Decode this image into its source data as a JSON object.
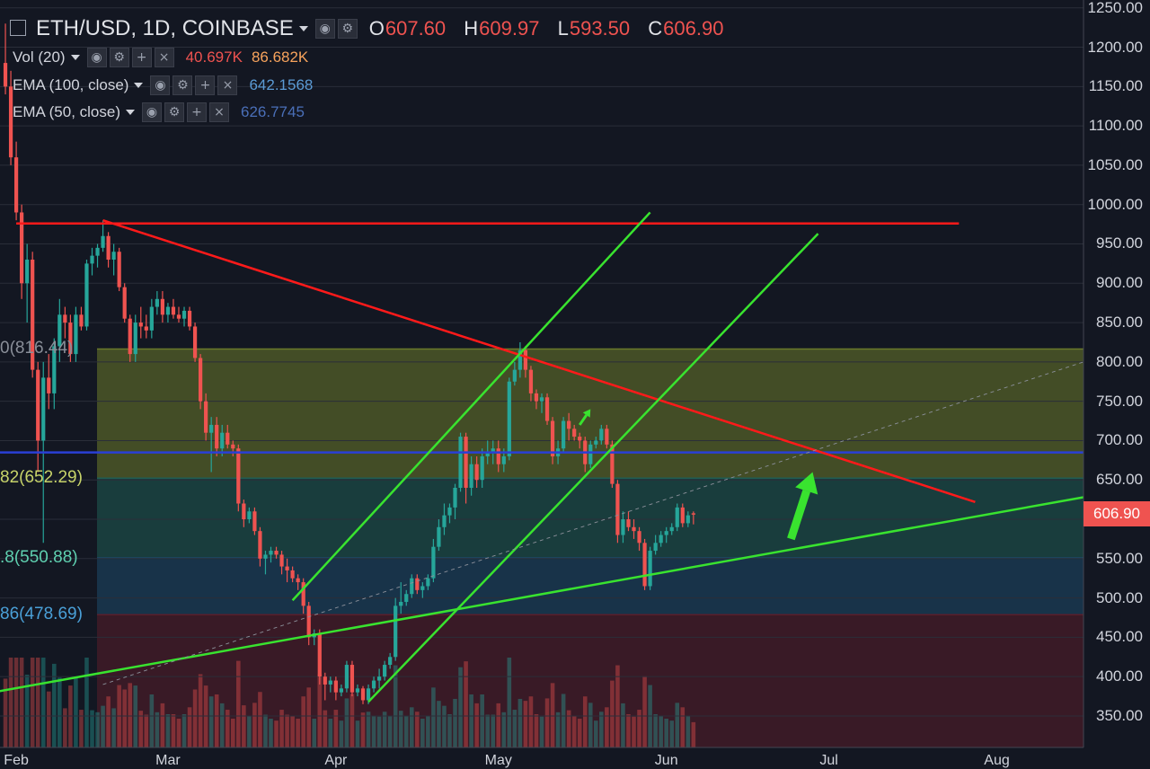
{
  "header": {
    "symbol_title": "ETH/USD, 1D, COINBASE",
    "ohlc": {
      "o": "607.60",
      "h": "609.97",
      "l": "593.50",
      "c": "606.90"
    },
    "indicators": [
      {
        "label": "Vol (20)",
        "value1": "40.697K",
        "value2": "86.682K",
        "value1_color": "#ef5350",
        "value2_color": "#f7a35c"
      },
      {
        "label": "EMA (100, close)",
        "value1": "642.1568",
        "value1_color": "#5b9bd5"
      },
      {
        "label": "EMA (50, close)",
        "value1": "626.7745",
        "value1_color": "#4a6fb8"
      }
    ]
  },
  "price_tag": "606.90",
  "fib_labels": [
    {
      "text": "0(816.44)",
      "price": 816.44,
      "color": "#8a8f99"
    },
    {
      "text": "82(652.29)",
      "price": 652.29,
      "color": "#c8d46a"
    },
    {
      "text": ".8(550.88)",
      "price": 550.88,
      "color": "#5fd0b0"
    },
    {
      "text": "86(478.69)",
      "price": 478.69,
      "color": "#4aa0d8"
    }
  ],
  "colors": {
    "background": "#131722",
    "up": "#26a69a",
    "down": "#ef5350",
    "trend_red": "#ff1a1a",
    "trend_green": "#39e32f",
    "support_blue": "#2a3fd6"
  },
  "chart_data": {
    "type": "candlestick",
    "title": "ETH/USD, 1D, COINBASE",
    "y_axis": {
      "ticks": [
        "1250.00",
        "1200.00",
        "1150.00",
        "1100.00",
        "1050.00",
        "1000.00",
        "950.00",
        "900.00",
        "850.00",
        "800.00",
        "750.00",
        "700.00",
        "650.00",
        "600.00",
        "550.00",
        "500.00",
        "450.00",
        "400.00",
        "350.00"
      ],
      "range": [
        310,
        1260
      ]
    },
    "x_axis": {
      "ticks": [
        {
          "label": "Feb",
          "date": "2018-02-01"
        },
        {
          "label": "Mar",
          "date": "2018-03-01"
        },
        {
          "label": "Apr",
          "date": "2018-04-01"
        },
        {
          "label": "May",
          "date": "2018-05-01"
        },
        {
          "label": "Jun",
          "date": "2018-06-01"
        },
        {
          "label": "Jul",
          "date": "2018-07-01"
        },
        {
          "label": "Aug",
          "date": "2018-08-01"
        }
      ],
      "range": [
        "2018-01-29",
        "2018-08-17"
      ]
    },
    "candles": [
      [
        "2018-01-30",
        1180,
        1230,
        1140,
        1150
      ],
      [
        "2018-01-31",
        1150,
        1170,
        1050,
        1060
      ],
      [
        "2018-02-01",
        1060,
        1080,
        980,
        990
      ],
      [
        "2018-02-02",
        990,
        1000,
        880,
        900
      ],
      [
        "2018-02-03",
        900,
        950,
        850,
        930
      ],
      [
        "2018-02-04",
        930,
        940,
        780,
        790
      ],
      [
        "2018-02-05",
        790,
        800,
        660,
        700
      ],
      [
        "2018-02-06",
        700,
        800,
        570,
        780
      ],
      [
        "2018-02-07",
        780,
        810,
        740,
        760
      ],
      [
        "2018-02-08",
        760,
        830,
        740,
        820
      ],
      [
        "2018-02-09",
        820,
        880,
        800,
        860
      ],
      [
        "2018-02-10",
        860,
        870,
        830,
        850
      ],
      [
        "2018-02-11",
        850,
        860,
        800,
        810
      ],
      [
        "2018-02-12",
        810,
        870,
        800,
        860
      ],
      [
        "2018-02-13",
        860,
        870,
        840,
        845
      ],
      [
        "2018-02-14",
        845,
        930,
        840,
        925
      ],
      [
        "2018-02-15",
        925,
        945,
        910,
        935
      ],
      [
        "2018-02-16",
        935,
        950,
        920,
        945
      ],
      [
        "2018-02-17",
        945,
        980,
        940,
        960
      ],
      [
        "2018-02-18",
        960,
        965,
        920,
        930
      ],
      [
        "2018-02-19",
        930,
        950,
        910,
        940
      ],
      [
        "2018-02-20",
        940,
        945,
        890,
        895
      ],
      [
        "2018-02-21",
        895,
        900,
        850,
        855
      ],
      [
        "2018-02-22",
        855,
        860,
        800,
        810
      ],
      [
        "2018-02-23",
        810,
        860,
        800,
        850
      ],
      [
        "2018-02-24",
        850,
        870,
        830,
        845
      ],
      [
        "2018-02-25",
        845,
        860,
        830,
        840
      ],
      [
        "2018-02-26",
        840,
        880,
        830,
        870
      ],
      [
        "2018-02-27",
        870,
        890,
        860,
        880
      ],
      [
        "2018-02-28",
        880,
        890,
        850,
        860
      ],
      [
        "2018-03-01",
        860,
        875,
        850,
        870
      ],
      [
        "2018-03-02",
        870,
        880,
        855,
        860
      ],
      [
        "2018-03-03",
        860,
        870,
        850,
        855
      ],
      [
        "2018-03-04",
        855,
        870,
        845,
        865
      ],
      [
        "2018-03-05",
        865,
        870,
        840,
        845
      ],
      [
        "2018-03-06",
        845,
        850,
        800,
        805
      ],
      [
        "2018-03-07",
        805,
        810,
        740,
        750
      ],
      [
        "2018-03-08",
        750,
        760,
        700,
        710
      ],
      [
        "2018-03-09",
        710,
        730,
        660,
        720
      ],
      [
        "2018-03-10",
        720,
        730,
        680,
        690
      ],
      [
        "2018-03-11",
        690,
        720,
        680,
        710
      ],
      [
        "2018-03-12",
        710,
        720,
        690,
        695
      ],
      [
        "2018-03-13",
        695,
        700,
        680,
        690
      ],
      [
        "2018-03-14",
        690,
        695,
        610,
        620
      ],
      [
        "2018-03-15",
        620,
        625,
        590,
        600
      ],
      [
        "2018-03-16",
        600,
        615,
        595,
        610
      ],
      [
        "2018-03-17",
        610,
        615,
        580,
        585
      ],
      [
        "2018-03-18",
        585,
        590,
        540,
        550
      ],
      [
        "2018-03-19",
        550,
        560,
        530,
        555
      ],
      [
        "2018-03-20",
        555,
        565,
        545,
        560
      ],
      [
        "2018-03-21",
        560,
        565,
        550,
        555
      ],
      [
        "2018-03-22",
        555,
        560,
        530,
        540
      ],
      [
        "2018-03-23",
        540,
        550,
        520,
        535
      ],
      [
        "2018-03-24",
        535,
        540,
        520,
        525
      ],
      [
        "2018-03-25",
        525,
        530,
        510,
        520
      ],
      [
        "2018-03-26",
        520,
        525,
        480,
        490
      ],
      [
        "2018-03-27",
        490,
        495,
        440,
        450
      ],
      [
        "2018-03-28",
        450,
        460,
        440,
        455
      ],
      [
        "2018-03-29",
        455,
        460,
        390,
        400
      ],
      [
        "2018-03-30",
        400,
        405,
        370,
        390
      ],
      [
        "2018-03-31",
        390,
        400,
        380,
        395
      ],
      [
        "2018-04-01",
        395,
        400,
        370,
        380
      ],
      [
        "2018-04-02",
        380,
        390,
        375,
        385
      ],
      [
        "2018-04-03",
        385,
        420,
        380,
        415
      ],
      [
        "2018-04-04",
        415,
        420,
        375,
        380
      ],
      [
        "2018-04-05",
        380,
        390,
        375,
        385
      ],
      [
        "2018-04-06",
        385,
        388,
        365,
        370
      ],
      [
        "2018-04-07",
        370,
        390,
        365,
        385
      ],
      [
        "2018-04-08",
        385,
        400,
        380,
        395
      ],
      [
        "2018-04-09",
        395,
        410,
        385,
        400
      ],
      [
        "2018-04-10",
        400,
        420,
        395,
        415
      ],
      [
        "2018-04-11",
        415,
        430,
        410,
        425
      ],
      [
        "2018-04-12",
        425,
        500,
        420,
        490
      ],
      [
        "2018-04-13",
        490,
        520,
        480,
        495
      ],
      [
        "2018-04-14",
        495,
        510,
        490,
        505
      ],
      [
        "2018-04-15",
        505,
        530,
        500,
        525
      ],
      [
        "2018-04-16",
        525,
        530,
        505,
        510
      ],
      [
        "2018-04-17",
        510,
        520,
        500,
        515
      ],
      [
        "2018-04-18",
        515,
        530,
        510,
        525
      ],
      [
        "2018-04-19",
        525,
        575,
        520,
        565
      ],
      [
        "2018-04-20",
        565,
        600,
        560,
        590
      ],
      [
        "2018-04-21",
        590,
        620,
        580,
        605
      ],
      [
        "2018-04-22",
        605,
        620,
        595,
        615
      ],
      [
        "2018-04-23",
        615,
        645,
        600,
        640
      ],
      [
        "2018-04-24",
        640,
        710,
        635,
        705
      ],
      [
        "2018-04-25",
        705,
        710,
        620,
        640
      ],
      [
        "2018-04-26",
        640,
        680,
        630,
        670
      ],
      [
        "2018-04-27",
        670,
        680,
        640,
        650
      ],
      [
        "2018-04-28",
        650,
        690,
        640,
        680
      ],
      [
        "2018-04-29",
        680,
        700,
        670,
        685
      ],
      [
        "2018-04-30",
        685,
        700,
        670,
        690
      ],
      [
        "2018-05-01",
        690,
        700,
        660,
        670
      ],
      [
        "2018-05-02",
        670,
        690,
        660,
        680
      ],
      [
        "2018-05-03",
        680,
        780,
        675,
        775
      ],
      [
        "2018-05-04",
        775,
        800,
        770,
        790
      ],
      [
        "2018-05-05",
        790,
        825,
        780,
        815
      ],
      [
        "2018-05-06",
        815,
        820,
        780,
        790
      ],
      [
        "2018-05-07",
        790,
        795,
        750,
        760
      ],
      [
        "2018-05-08",
        760,
        765,
        740,
        750
      ],
      [
        "2018-05-09",
        750,
        760,
        735,
        755
      ],
      [
        "2018-05-10",
        755,
        760,
        720,
        725
      ],
      [
        "2018-05-11",
        725,
        730,
        670,
        680
      ],
      [
        "2018-05-12",
        680,
        700,
        670,
        690
      ],
      [
        "2018-05-13",
        690,
        730,
        685,
        725
      ],
      [
        "2018-05-14",
        725,
        735,
        700,
        715
      ],
      [
        "2018-05-15",
        715,
        720,
        700,
        705
      ],
      [
        "2018-05-16",
        705,
        710,
        690,
        700
      ],
      [
        "2018-05-17",
        700,
        705,
        660,
        670
      ],
      [
        "2018-05-18",
        670,
        700,
        665,
        695
      ],
      [
        "2018-05-19",
        695,
        705,
        690,
        700
      ],
      [
        "2018-05-20",
        700,
        720,
        695,
        715
      ],
      [
        "2018-05-21",
        715,
        720,
        690,
        695
      ],
      [
        "2018-05-22",
        695,
        700,
        640,
        645
      ],
      [
        "2018-05-23",
        645,
        650,
        570,
        580
      ],
      [
        "2018-05-24",
        580,
        610,
        570,
        600
      ],
      [
        "2018-05-25",
        600,
        610,
        585,
        590
      ],
      [
        "2018-05-26",
        590,
        600,
        575,
        585
      ],
      [
        "2018-05-27",
        585,
        590,
        560,
        570
      ],
      [
        "2018-05-28",
        570,
        575,
        510,
        515
      ],
      [
        "2018-05-29",
        515,
        565,
        510,
        560
      ],
      [
        "2018-05-30",
        560,
        580,
        555,
        570
      ],
      [
        "2018-05-31",
        570,
        585,
        565,
        580
      ],
      [
        "2018-06-01",
        580,
        590,
        570,
        585
      ],
      [
        "2018-06-02",
        585,
        595,
        580,
        590
      ],
      [
        "2018-06-03",
        590,
        620,
        585,
        615
      ],
      [
        "2018-06-04",
        615,
        620,
        590,
        595
      ],
      [
        "2018-06-05",
        595,
        610,
        590,
        605
      ],
      [
        "2018-06-06",
        607.6,
        609.97,
        593.5,
        606.9
      ]
    ],
    "horizontal_levels": [
      {
        "name": "resistance",
        "price": 976,
        "color": "#ff1a1a",
        "from": "2018-02-01",
        "to": "2018-07-25"
      },
      {
        "name": "support",
        "price": 685,
        "color": "#2a3fd6"
      }
    ],
    "fib_zones": [
      {
        "from": 816.44,
        "to": 652.29,
        "color": "#6b7a2a"
      },
      {
        "from": 652.29,
        "to": 550.88,
        "color": "#1f5d54"
      },
      {
        "from": 550.88,
        "to": 478.69,
        "color": "#1e4a6a"
      },
      {
        "from": 478.69,
        "to": 300,
        "color": "#5a1e2a"
      }
    ],
    "trendlines": [
      {
        "color": "#ff1a1a",
        "points": [
          [
            "2018-02-17",
            980
          ],
          [
            "2018-07-28",
            622
          ]
        ]
      },
      {
        "color": "#39e32f",
        "points": [
          [
            "2018-01-26",
            378
          ],
          [
            "2018-08-17",
            628
          ]
        ]
      },
      {
        "color": "#39e32f",
        "points": [
          [
            "2018-03-24",
            497
          ],
          [
            "2018-05-29",
            990
          ]
        ]
      },
      {
        "color": "#39e32f",
        "points": [
          [
            "2018-04-07",
            368
          ],
          [
            "2018-06-29",
            963
          ]
        ]
      },
      {
        "color": "#8a8f99",
        "dashed": true,
        "points": [
          [
            "2018-02-17",
            390
          ],
          [
            "2018-08-17",
            800
          ]
        ]
      }
    ],
    "arrows": [
      {
        "color": "#39e32f",
        "from": [
          "2018-06-24",
          575
        ],
        "to": [
          "2018-06-28",
          660
        ]
      },
      {
        "color": "#39e32f",
        "from": [
          "2018-05-16",
          720
        ],
        "to": [
          "2018-05-18",
          740
        ]
      }
    ]
  }
}
